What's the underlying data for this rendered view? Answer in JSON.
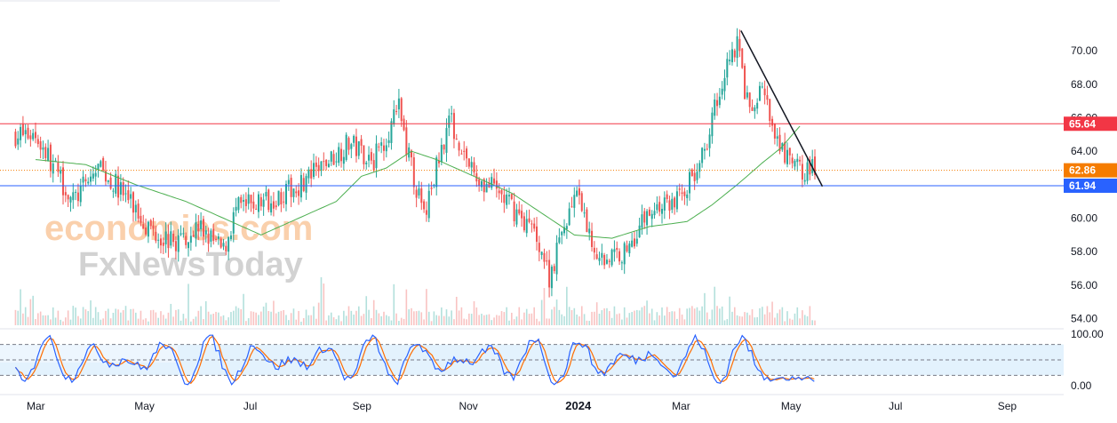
{
  "colors": {
    "up": "#26a69a",
    "down": "#ef5350",
    "ma": "#4caf50",
    "resistance": "#f23645",
    "support": "#2962ff",
    "last": "#f57c00",
    "stoch_k": "#2962ff",
    "stoch_d": "#ff6d00",
    "stoch_band": "#e3f2fd"
  },
  "watermark": {
    "line1": "economies.com",
    "line2": "FxNewsToday"
  },
  "chart_data": {
    "type": "candlestick",
    "title": "",
    "price_axis": {
      "ylim": [
        53.5,
        72.5
      ],
      "ticks": [
        "54.00",
        "56.00",
        "58.00",
        "60.00",
        "62.00",
        "64.00",
        "66.00",
        "68.00",
        "70.00"
      ]
    },
    "time_axis": {
      "labels": [
        "Mar",
        "May",
        "Jul",
        "Sep",
        "Nov",
        "2024",
        "Mar",
        "May",
        "Jul",
        "Sep"
      ],
      "bold_label": "2024",
      "label_positions_weeks": [
        0,
        8.6,
        17.3,
        26,
        34.5,
        43,
        51.5,
        60.2,
        68.8,
        77.5
      ],
      "data_start_week": -1.6,
      "data_end_week": 62.3
    },
    "series": [
      {
        "name": "",
        "type": "candlestick",
        "close_path": [
          [
            0,
            65.0
          ],
          [
            3,
            61.0
          ],
          [
            5,
            63.0
          ],
          [
            7,
            61.5
          ],
          [
            9,
            59.5
          ],
          [
            11,
            58.5
          ],
          [
            13,
            59.5
          ],
          [
            15,
            58.0
          ],
          [
            16,
            60.5
          ],
          [
            20,
            61.5
          ],
          [
            22,
            62.5
          ],
          [
            25,
            64.5
          ],
          [
            27,
            63.5
          ],
          [
            29,
            66.5
          ],
          [
            30,
            63.0
          ],
          [
            31,
            60.0
          ],
          [
            33,
            66.0
          ],
          [
            35,
            62.5
          ],
          [
            37,
            61.5
          ],
          [
            40,
            59.0
          ],
          [
            41,
            56.5
          ],
          [
            43,
            61.5
          ],
          [
            45,
            57.5
          ],
          [
            47,
            58.0
          ],
          [
            49,
            60.5
          ],
          [
            51,
            61.0
          ],
          [
            53,
            63.0
          ],
          [
            55,
            69.0
          ],
          [
            56,
            70.5
          ],
          [
            57,
            66.0
          ],
          [
            58,
            68.0
          ],
          [
            59,
            64.5
          ],
          [
            60,
            63.5
          ],
          [
            61,
            62.9
          ]
        ],
        "high": 71.1,
        "low": 55.5,
        "last": 62.86
      },
      {
        "name": "",
        "type": "moving-average",
        "path": [
          [
            0,
            63.5
          ],
          [
            4,
            63.2
          ],
          [
            8,
            62.0
          ],
          [
            12,
            61.0
          ],
          [
            15,
            60.0
          ],
          [
            18,
            59.0
          ],
          [
            21,
            60.0
          ],
          [
            24,
            61.0
          ],
          [
            26,
            62.5
          ],
          [
            28,
            63.0
          ],
          [
            30,
            64.0
          ],
          [
            32,
            63.5
          ],
          [
            35,
            62.5
          ],
          [
            38,
            61.5
          ],
          [
            41,
            60.0
          ],
          [
            43,
            59.0
          ],
          [
            46,
            58.8
          ],
          [
            49,
            59.5
          ],
          [
            52,
            59.8
          ],
          [
            54,
            60.8
          ],
          [
            56,
            62.0
          ],
          [
            58,
            63.3
          ],
          [
            59.5,
            64.2
          ],
          [
            61,
            65.5
          ]
        ]
      }
    ],
    "levels": [
      {
        "name": "resistance",
        "value": 65.64,
        "label": "65.64"
      },
      {
        "name": "last-price",
        "value": 62.86,
        "label": "62.86"
      },
      {
        "name": "support",
        "value": 61.94,
        "label": "61.94"
      }
    ],
    "trendline": {
      "from": [
        56.3,
        71.2
      ],
      "to": [
        62.8,
        61.9
      ]
    },
    "volume": {
      "max_height_fraction": 1.0
    },
    "stochastic": {
      "ylim": [
        0,
        100
      ],
      "ticks": [
        "0.00",
        "100.00"
      ],
      "dashed_levels": [
        20,
        50,
        80
      ],
      "overbought": 80,
      "oversold": 20
    }
  }
}
